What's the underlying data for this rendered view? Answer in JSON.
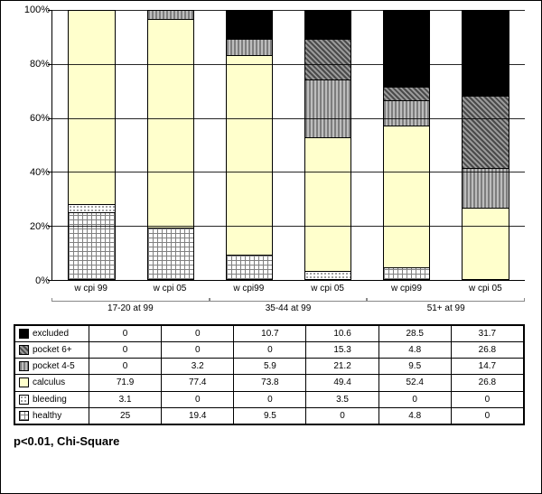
{
  "chart": {
    "type": "stacked-bar",
    "y_axis": {
      "min": 0,
      "max": 100,
      "tick_step": 20,
      "tick_suffix": "%",
      "ticks": [
        0,
        20,
        40,
        60,
        80,
        100
      ]
    },
    "background_color": "#ffffff",
    "grid_color": "#000000",
    "categories": [
      {
        "label": "w cpi 99",
        "group": "17-20 at 99"
      },
      {
        "label": "w cpi 05",
        "group": "17-20 at 99"
      },
      {
        "label": "w cpi99",
        "group": "35-44 at 99"
      },
      {
        "label": "w cpi 05",
        "group": "35-44 at 99"
      },
      {
        "label": "w cpi99",
        "group": "51+ at 99"
      },
      {
        "label": "w cpi 05",
        "group": "51+ at 99"
      }
    ],
    "groups": [
      "17-20 at 99",
      "35-44 at 99",
      "51+ at 99"
    ],
    "series": [
      {
        "key": "excluded",
        "label": "excluded",
        "fill_class": "fill-solid-black",
        "values": [
          0,
          0,
          10.7,
          10.6,
          28.5,
          31.7
        ]
      },
      {
        "key": "pocket6",
        "label": "pocket 6+",
        "fill_class": "fill-diag-dark",
        "values": [
          0,
          0,
          0,
          15.3,
          4.8,
          26.8
        ]
      },
      {
        "key": "pocket45",
        "label": "pocket 4-5",
        "fill_class": "fill-stripe-gray",
        "values": [
          0,
          3.2,
          5.9,
          21.2,
          9.5,
          14.7
        ]
      },
      {
        "key": "calculus",
        "label": "calculus",
        "fill_class": "fill-cream",
        "values": [
          71.9,
          77.4,
          73.8,
          49.4,
          52.4,
          26.8
        ]
      },
      {
        "key": "bleeding",
        "label": "bleeding",
        "fill_class": "fill-dots",
        "values": [
          3.1,
          0,
          0,
          3.5,
          0,
          0
        ]
      },
      {
        "key": "healthy",
        "label": "healthy",
        "fill_class": "fill-cross",
        "values": [
          25,
          19.4,
          9.5,
          0,
          4.8,
          0
        ]
      }
    ],
    "label_fontsize": 10
  },
  "caption": "p<0.01, Chi-Square"
}
